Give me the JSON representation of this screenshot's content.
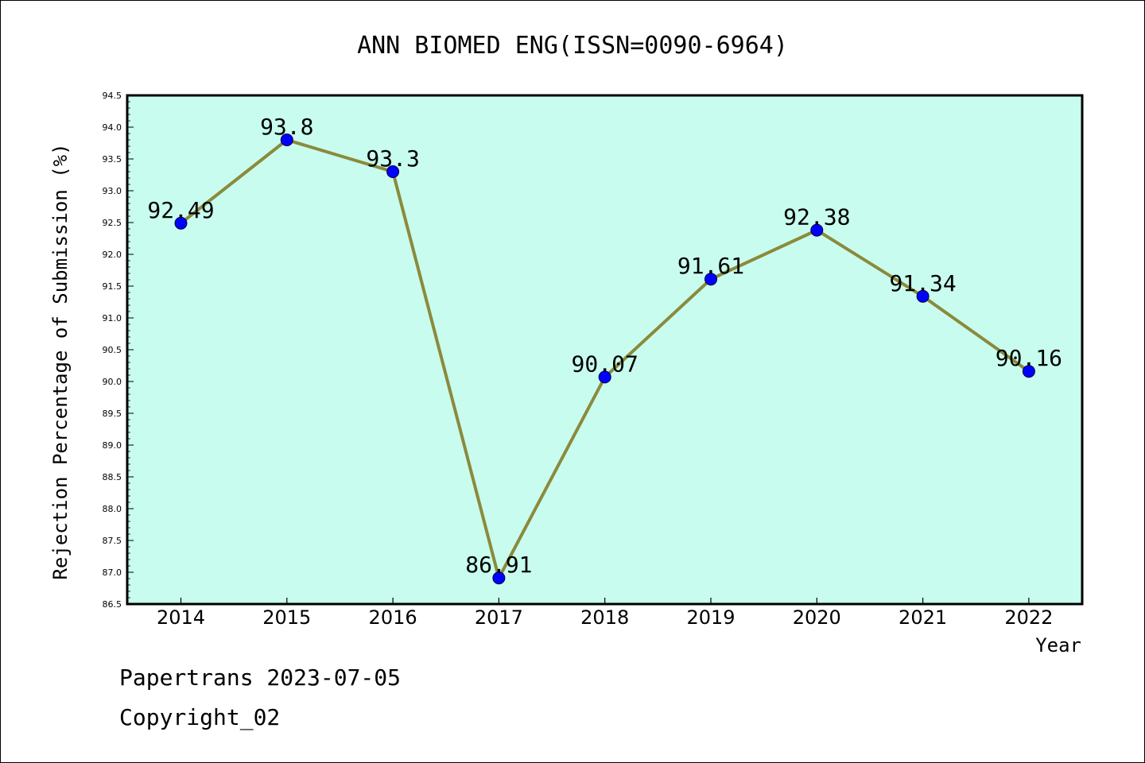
{
  "chart_data": {
    "type": "line",
    "title": "ANN BIOMED ENG(ISSN=0090-6964)",
    "xlabel": "Year",
    "ylabel": "Rejection Percentage of Submission (%)",
    "categories": [
      "2014",
      "2015",
      "2016",
      "2017",
      "2018",
      "2019",
      "2020",
      "2021",
      "2022"
    ],
    "series": [
      {
        "values": [
          92.49,
          93.8,
          93.3,
          86.91,
          90.07,
          91.61,
          92.38,
          91.34,
          90.16
        ]
      }
    ],
    "data_labels": [
      "92.49",
      "93.8",
      "93.3",
      "86.91",
      "90.07",
      "91.61",
      "92.38",
      "91.34",
      "90.16"
    ],
    "ylim": [
      86.5,
      94.5
    ],
    "y_ticks": [
      "86.5",
      "87.0",
      "87.5",
      "88.0",
      "88.5",
      "89.0",
      "89.5",
      "90.0",
      "90.5",
      "91.0",
      "91.5",
      "92.0",
      "92.5",
      "93.0",
      "93.5",
      "94.0",
      "94.5"
    ],
    "grid": false,
    "colors": {
      "plot_background": "#c8fcee",
      "line": "#8b8a3c",
      "marker": "#0000ff"
    }
  },
  "footer": {
    "line1": "Papertrans 2023-07-05",
    "line2": "Copyright_02"
  }
}
